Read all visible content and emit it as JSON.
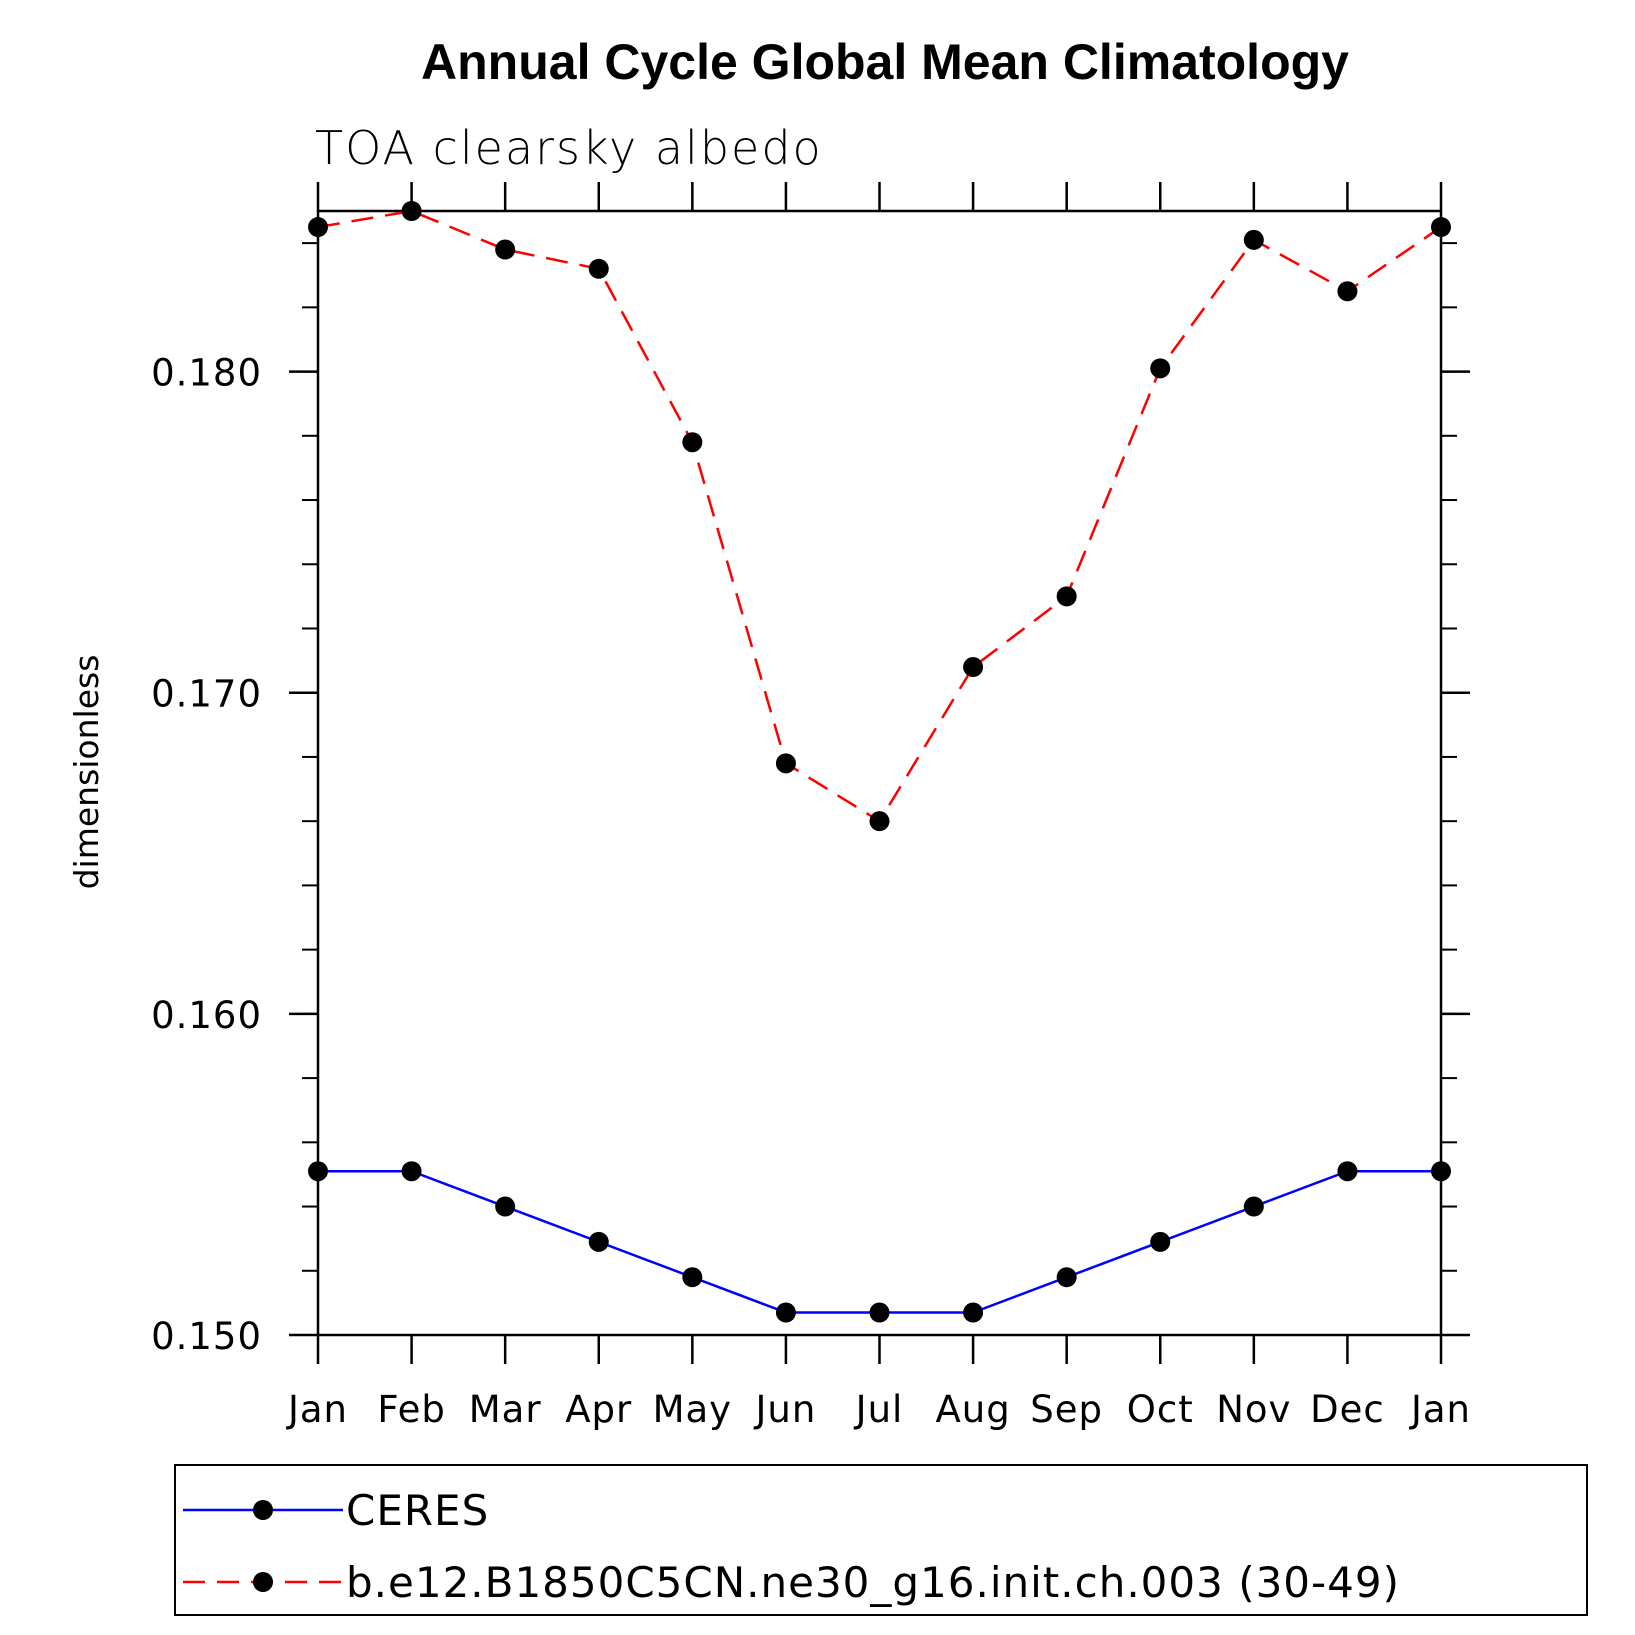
{
  "chart_data": {
    "type": "line",
    "title": "Annual Cycle Global Mean Climatology",
    "subtitle": "TOA clearsky albedo",
    "xlabel": "",
    "ylabel": "dimensionless",
    "categories": [
      "Jan",
      "Feb",
      "Mar",
      "Apr",
      "May",
      "Jun",
      "Jul",
      "Aug",
      "Sep",
      "Oct",
      "Nov",
      "Dec",
      "Jan"
    ],
    "ylim": [
      0.15,
      0.185
    ],
    "yticks": [
      0.15,
      0.16,
      0.17,
      0.18
    ],
    "ytick_labels": [
      "0.150",
      "0.160",
      "0.170",
      "0.180"
    ],
    "legend_position": "bottom",
    "series": [
      {
        "name": "CERES",
        "color": "#0000ff",
        "dash": "solid",
        "values": [
          0.1551,
          0.1551,
          0.154,
          0.1529,
          0.1518,
          0.1507,
          0.1507,
          0.1507,
          0.1518,
          0.1529,
          0.154,
          0.1551,
          0.1551
        ]
      },
      {
        "name": "b.e12.B1850C5CN.ne30_g16.init.ch.003 (30-49)",
        "color": "#ff0000",
        "dash": "dashed",
        "values": [
          0.1845,
          0.185,
          0.1838,
          0.1832,
          0.1778,
          0.1678,
          0.166,
          0.1708,
          0.173,
          0.1801,
          0.1841,
          0.1825,
          0.1845
        ]
      }
    ]
  }
}
